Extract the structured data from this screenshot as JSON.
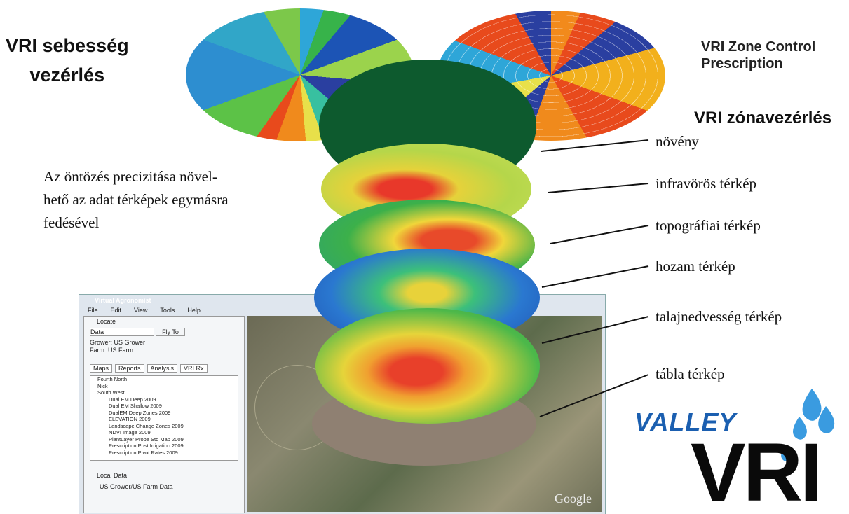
{
  "headings": {
    "speed_control": [
      "VRI sebesség",
      "vezérlés"
    ],
    "zone_prescription": [
      "VRI Zone Control",
      "Prescription"
    ],
    "zone_control": "VRI zónavezérlés"
  },
  "description": [
    "Az öntözés precizitása növel-",
    "hető az adat térképek egymásra",
    "fedésével"
  ],
  "layers": [
    "növény",
    "infravörös térkép",
    "topográfiai térkép",
    "hozam térkép",
    "talajnedvesség térkép",
    "tábla térkép"
  ],
  "logos": {
    "valley": "VALLEY",
    "vri": "VRI"
  },
  "app": {
    "title": "Virtual Agronomist",
    "menu": [
      "File",
      "Edit",
      "View",
      "Tools",
      "Help"
    ],
    "panel_title": "Locate",
    "search": [
      "Data",
      "Fly To"
    ],
    "grower": "Grower:  US Grower",
    "farm": "Farm:  US Farm",
    "tabs": [
      "Maps",
      "Reports",
      "Analysis",
      "VRI Rx"
    ],
    "tree": [
      "Fourth North",
      "Nick",
      "South West",
      "Dual EM Deep 2009",
      "Dual EM Shallow 2009",
      "DualEM Deep Zones 2009",
      "ELEVATION 2009",
      "Landscape Change Zones 2009",
      "NDVI Image 2009",
      "PlantLayer Probe Std Map 2009",
      "Prescription Post Irrigation 2009",
      "Prescription Pivot Rates 2009"
    ],
    "local_title": "Local Data",
    "local_item": "US Grower/US Farm Data",
    "map_brand": "Google"
  }
}
